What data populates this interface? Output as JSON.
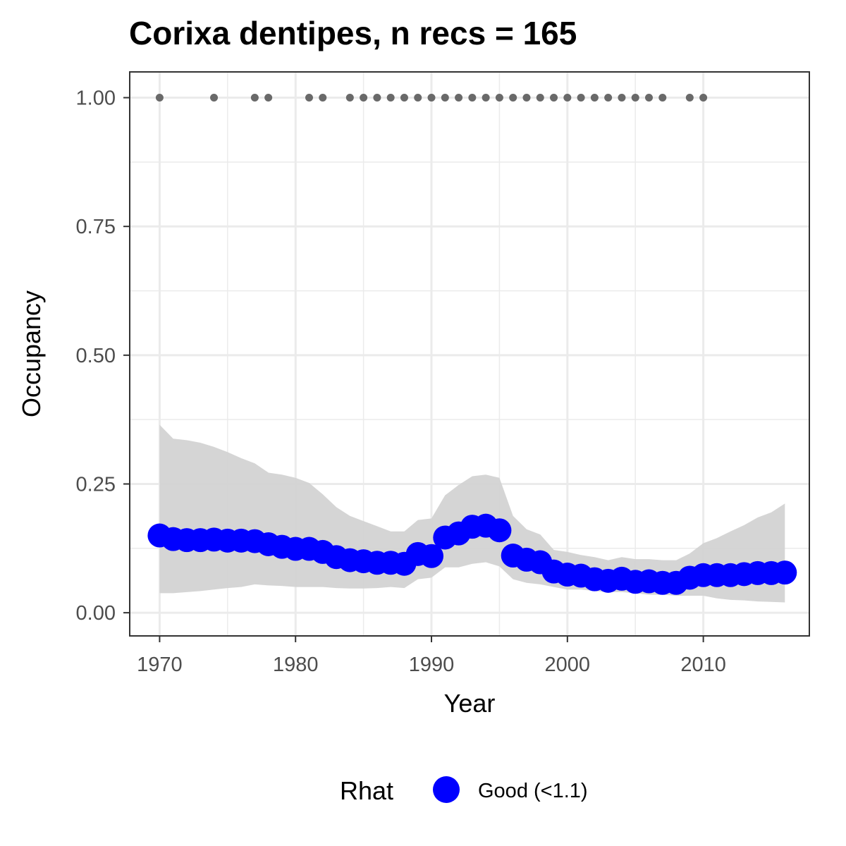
{
  "chart_data": {
    "type": "line",
    "title": "Corixa dentipes, n recs = 165",
    "xlabel": "Year",
    "ylabel": "Occupancy",
    "xlim": [
      1967.8,
      2017.8
    ],
    "ylim": [
      -0.045,
      1.05
    ],
    "x_ticks": [
      1970,
      1980,
      1990,
      2000,
      2010
    ],
    "x_tick_labels": [
      "1970",
      "1980",
      "1990",
      "2000",
      "2010"
    ],
    "y_ticks": [
      0,
      0.25,
      0.5,
      0.75,
      1.0
    ],
    "y_tick_labels": [
      "0.00",
      "0.25",
      "0.50",
      "0.75",
      "1.00"
    ],
    "grid": true,
    "legend_position": "bottom",
    "legend": {
      "title": "Rhat",
      "entries": [
        {
          "label": "Good (<1.1)",
          "color": "#0000ff"
        }
      ]
    },
    "colors": {
      "point": "#0000ff",
      "ribbon": "#d3d3d3",
      "record": "#696969",
      "grid": "#ebebeb",
      "panel_border": "#333333"
    },
    "series": [
      {
        "name": "Good (<1.1)",
        "x": [
          1970,
          1971,
          1972,
          1973,
          1974,
          1975,
          1976,
          1977,
          1978,
          1979,
          1980,
          1981,
          1982,
          1983,
          1984,
          1985,
          1986,
          1987,
          1988,
          1989,
          1990,
          1991,
          1992,
          1993,
          1994,
          1995,
          1996,
          1997,
          1998,
          1999,
          2000,
          2001,
          2002,
          2003,
          2004,
          2005,
          2006,
          2007,
          2008,
          2009,
          2010,
          2011,
          2012,
          2013,
          2014,
          2015,
          2016
        ],
        "y": [
          0.15,
          0.143,
          0.141,
          0.141,
          0.142,
          0.14,
          0.14,
          0.139,
          0.133,
          0.128,
          0.124,
          0.124,
          0.118,
          0.108,
          0.102,
          0.1,
          0.097,
          0.097,
          0.095,
          0.114,
          0.11,
          0.146,
          0.154,
          0.167,
          0.169,
          0.16,
          0.111,
          0.103,
          0.098,
          0.08,
          0.074,
          0.072,
          0.065,
          0.062,
          0.066,
          0.06,
          0.061,
          0.058,
          0.058,
          0.068,
          0.073,
          0.073,
          0.073,
          0.075,
          0.077,
          0.077,
          0.078
        ]
      }
    ],
    "ribbon": {
      "x": [
        1970,
        1971,
        1972,
        1973,
        1974,
        1975,
        1976,
        1977,
        1978,
        1979,
        1980,
        1981,
        1982,
        1983,
        1984,
        1985,
        1986,
        1987,
        1988,
        1989,
        1990,
        1991,
        1992,
        1993,
        1994,
        1995,
        1996,
        1997,
        1998,
        1999,
        2000,
        2001,
        2002,
        2003,
        2004,
        2005,
        2006,
        2007,
        2008,
        2009,
        2010,
        2011,
        2012,
        2013,
        2014,
        2015,
        2016
      ],
      "lower": [
        0.038,
        0.038,
        0.04,
        0.042,
        0.045,
        0.048,
        0.05,
        0.055,
        0.053,
        0.052,
        0.05,
        0.05,
        0.05,
        0.048,
        0.047,
        0.047,
        0.048,
        0.05,
        0.048,
        0.065,
        0.068,
        0.088,
        0.088,
        0.095,
        0.098,
        0.09,
        0.065,
        0.058,
        0.055,
        0.05,
        0.045,
        0.045,
        0.042,
        0.04,
        0.04,
        0.038,
        0.035,
        0.035,
        0.033,
        0.033,
        0.033,
        0.028,
        0.025,
        0.024,
        0.022,
        0.021,
        0.02
      ],
      "upper": [
        0.365,
        0.338,
        0.335,
        0.33,
        0.322,
        0.312,
        0.3,
        0.29,
        0.272,
        0.268,
        0.262,
        0.252,
        0.23,
        0.205,
        0.188,
        0.178,
        0.168,
        0.158,
        0.158,
        0.18,
        0.183,
        0.228,
        0.248,
        0.265,
        0.268,
        0.262,
        0.188,
        0.162,
        0.152,
        0.122,
        0.118,
        0.112,
        0.108,
        0.102,
        0.108,
        0.104,
        0.104,
        0.102,
        0.102,
        0.115,
        0.135,
        0.145,
        0.158,
        0.17,
        0.185,
        0.195,
        0.212
      ]
    },
    "records": {
      "x": [
        1970,
        1974,
        1977,
        1978,
        1981,
        1982,
        1984,
        1985,
        1986,
        1987,
        1988,
        1989,
        1990,
        1991,
        1992,
        1993,
        1994,
        1995,
        1996,
        1997,
        1998,
        1999,
        2000,
        2001,
        2002,
        2003,
        2004,
        2005,
        2006,
        2007,
        2009,
        2010
      ],
      "y": 1.0
    }
  }
}
